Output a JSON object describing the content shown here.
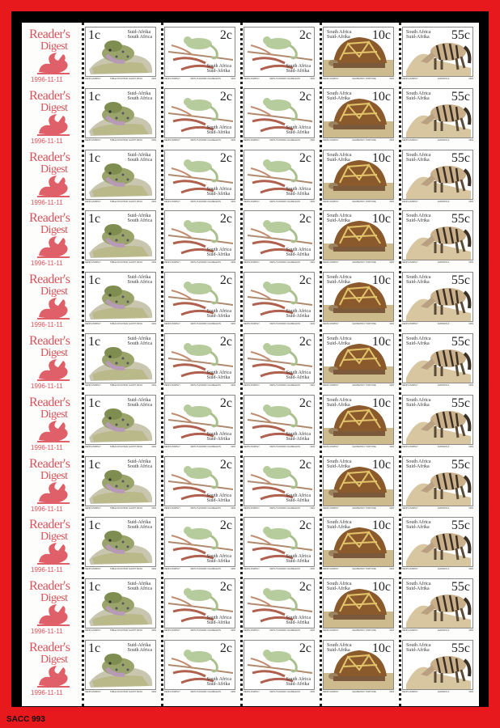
{
  "catalogue_label": "SACC 993",
  "margin": {
    "logo_line1": "Reader's",
    "logo_line2": "Digest",
    "date": "1996-11-11",
    "logo_icon": "pegasus-icon"
  },
  "stamps": [
    {
      "value": "1c",
      "country_line1": "Suid-Afrika",
      "country_line2": "South Africa",
      "artist": "DENIS MURPHY",
      "species": "TABLE MOUNTAIN GHOST FROG",
      "year": "1993",
      "animal": "frog"
    },
    {
      "value": "2c",
      "country_line1": "South Africa",
      "country_line2": "Suid-Afrika",
      "artist": "DENIS MURPHY",
      "species": "SMITH'S DWARF CHAMELEON",
      "year": "1993",
      "animal": "chameleon"
    },
    {
      "value": "2c",
      "country_line1": "South Africa",
      "country_line2": "Suid-Afrika",
      "artist": "DENIS MURPHY",
      "species": "SMITH'S DWARF CHAMELEON",
      "year": "1993",
      "animal": "chameleon"
    },
    {
      "value": "10c",
      "country_line1": "South Africa",
      "country_line2": "Suid-Afrika",
      "artist": "DENIS MURPHY",
      "species": "GEOMETRIC TORTOISE",
      "year": "1993",
      "animal": "tortoise"
    },
    {
      "value": "55c",
      "country_line1": "South Africa",
      "country_line2": "Suid-Afrika",
      "artist": "DENIS MURPHY",
      "species": "AARDWOLF",
      "year": "1993",
      "animal": "aardwolf"
    }
  ],
  "colors": {
    "border": "#e8191c",
    "frame": "#000000",
    "logo": "#d9535c"
  }
}
